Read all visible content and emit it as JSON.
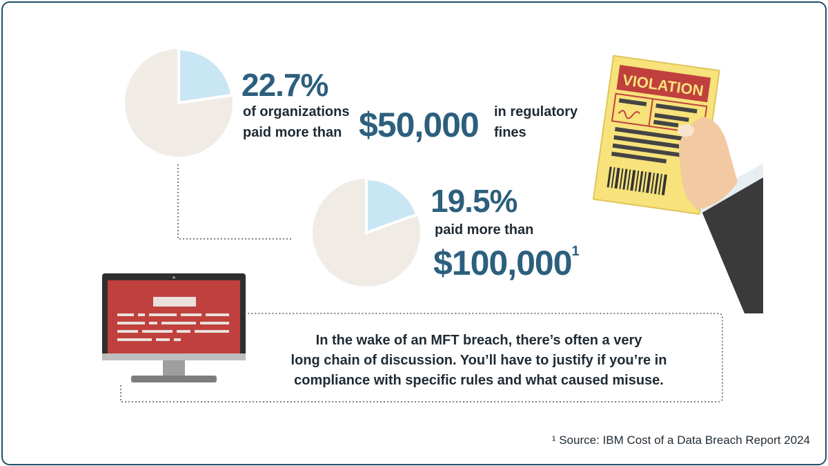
{
  "stat1": {
    "percent": "22.7%",
    "line1": "of organizations",
    "line2": "paid more than",
    "amount": "$50,000",
    "suffix1": "in regulatory",
    "suffix2": "fines",
    "share": 0.227
  },
  "stat2": {
    "percent": "19.5%",
    "line1": "paid more than",
    "amount": "$100,000",
    "footnote_mark": "1",
    "share": 0.195
  },
  "ticket": {
    "label": "VIOLATION"
  },
  "quote": {
    "line1": "In the wake of an MFT breach, there’s often a very",
    "line2": "long chain of discussion. You’ll have to justify if you’re in",
    "line3": "compliance with specific rules and what caused misuse."
  },
  "source": "¹ Source: IBM Cost of a Data Breach Report 2024",
  "colors": {
    "border": "#1d4f6a",
    "stat_text": "#2c5f7d",
    "pie_base": "#f1ebe6",
    "pie_slice": "#c8e6f3",
    "monitor_screen": "#c0403d",
    "ticket": "#f7e27b"
  }
}
